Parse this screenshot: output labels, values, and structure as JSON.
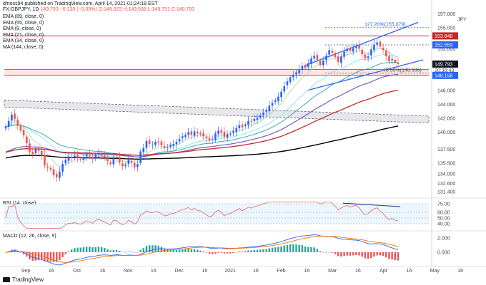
{
  "header": {
    "author_line": "dmoss94 published on TradingView.com, April 14, 2021 01:24:18 EST",
    "symbol": "FX:GBPJPY, 1D",
    "last": "149.793",
    "change": "−0.130 (−0.09%)",
    "open": "O:149.923",
    "high": "H:149.938",
    "low": "L:149.751",
    "close": "C:149.793"
  },
  "legend": [
    "EMA (89, close, 0)",
    "EMA (55, close, 0)",
    "EMA (8, close, 0)",
    "EMA (21, close, 0)",
    "EMA (34, close, 0)",
    "MA (144, close, 0)"
  ],
  "rsi_label": "RSI (14, close)",
  "macd_label": "MACD (12, 26, close, 9)",
  "brand": "TradingView",
  "currency": "JPY",
  "colors": {
    "up": "#2962ff",
    "down": "#ef5350",
    "ema8": "#a5d6a7",
    "ema21": "#80deea",
    "ema34": "#26a69a",
    "ema55": "#7e57c2",
    "ema89": "#c62828",
    "ma144": "#000000",
    "resistance": "#c62828",
    "support": "#2962ff"
  },
  "chart_data": [
    {
      "type": "candlestick",
      "series_lines": [
        "EMA 8",
        "EMA 21",
        "EMA 34",
        "EMA 55",
        "EMA 89",
        "MA 144"
      ],
      "x_ticks": [
        "Sep",
        "16",
        "Oct",
        "16",
        "Nov",
        "16",
        "Dec",
        "16",
        "2021",
        "16",
        "Feb",
        "16",
        "Mar",
        "16",
        "Apr",
        "16",
        "May",
        "18"
      ],
      "y_ticks": [
        "131.400",
        "132.600",
        "134.000",
        "135.500",
        "137.500",
        "140.000",
        "142.000",
        "144.000",
        "146.000",
        "148.000",
        "150.000",
        "152.000",
        "154.000",
        "155.000",
        "157.000"
      ],
      "ylim": [
        130.8,
        158.2
      ],
      "price_labels": [
        "153.848",
        "152.553",
        "149.793",
        "148.158"
      ],
      "countdown": "20:35:43",
      "annotations": [
        "127.20%(155.079)",
        "78.60%(148.506)"
      ],
      "last_price": 149.793,
      "closes": [
        140.8,
        141.6,
        142.5,
        141.9,
        140.9,
        140.2,
        139.5,
        138.4,
        137.1,
        136.8,
        137.6,
        137.3,
        136.6,
        135.2,
        134.9,
        134.6,
        133.8,
        133.5,
        134.3,
        135.4,
        136.0,
        136.5,
        136.3,
        136.6,
        136.2,
        136.0,
        136.4,
        136.8,
        136.5,
        136.1,
        136.7,
        137.0,
        136.6,
        136.3,
        135.8,
        135.4,
        136.4,
        136.3,
        135.6,
        135.1,
        135.3,
        136.0,
        135.6,
        134.9,
        135.4,
        137.2,
        137.7,
        138.7,
        138.3,
        138.2,
        138.6,
        138.5,
        138.1,
        137.7,
        137.8,
        138.2,
        138.3,
        138.6,
        139.0,
        139.4,
        139.6,
        140.0,
        139.6,
        140.1,
        139.8,
        139.7,
        139.4,
        139.1,
        138.8,
        139.0,
        139.8,
        140.2,
        139.9,
        139.3,
        139.7,
        139.8,
        140.2,
        140.6,
        141.0,
        140.7,
        141.1,
        141.6,
        141.5,
        141.9,
        142.1,
        142.4,
        142.8,
        143.1,
        143.8,
        144.2,
        144.6,
        145.1,
        145.8,
        146.6,
        147.3,
        147.9,
        148.2,
        148.6,
        149.0,
        149.5,
        149.2,
        149.9,
        150.6,
        151.0,
        150.4,
        149.7,
        150.3,
        151.0,
        151.8,
        151.4,
        150.8,
        150.1,
        150.9,
        151.6,
        152.0,
        151.7,
        152.1,
        152.4,
        152.0,
        151.2,
        150.6,
        150.9,
        151.9,
        152.6,
        152.9,
        152.3,
        151.8,
        150.9,
        150.2,
        150.5,
        150.0,
        149.8
      ]
    },
    {
      "type": "line",
      "title": "RSI (14, close)",
      "y_ticks": [
        "75.00",
        "60.00",
        "50.00",
        "40.00"
      ],
      "ylim": [
        30,
        80
      ],
      "current": [
        "60.00",
        "50.00",
        "40.00"
      ]
    },
    {
      "type": "line",
      "title": "MACD (12, 26, close, 9)",
      "y_ticks": [
        "2.000",
        "0.000"
      ],
      "ylim": [
        -1.6,
        2.6
      ]
    }
  ]
}
